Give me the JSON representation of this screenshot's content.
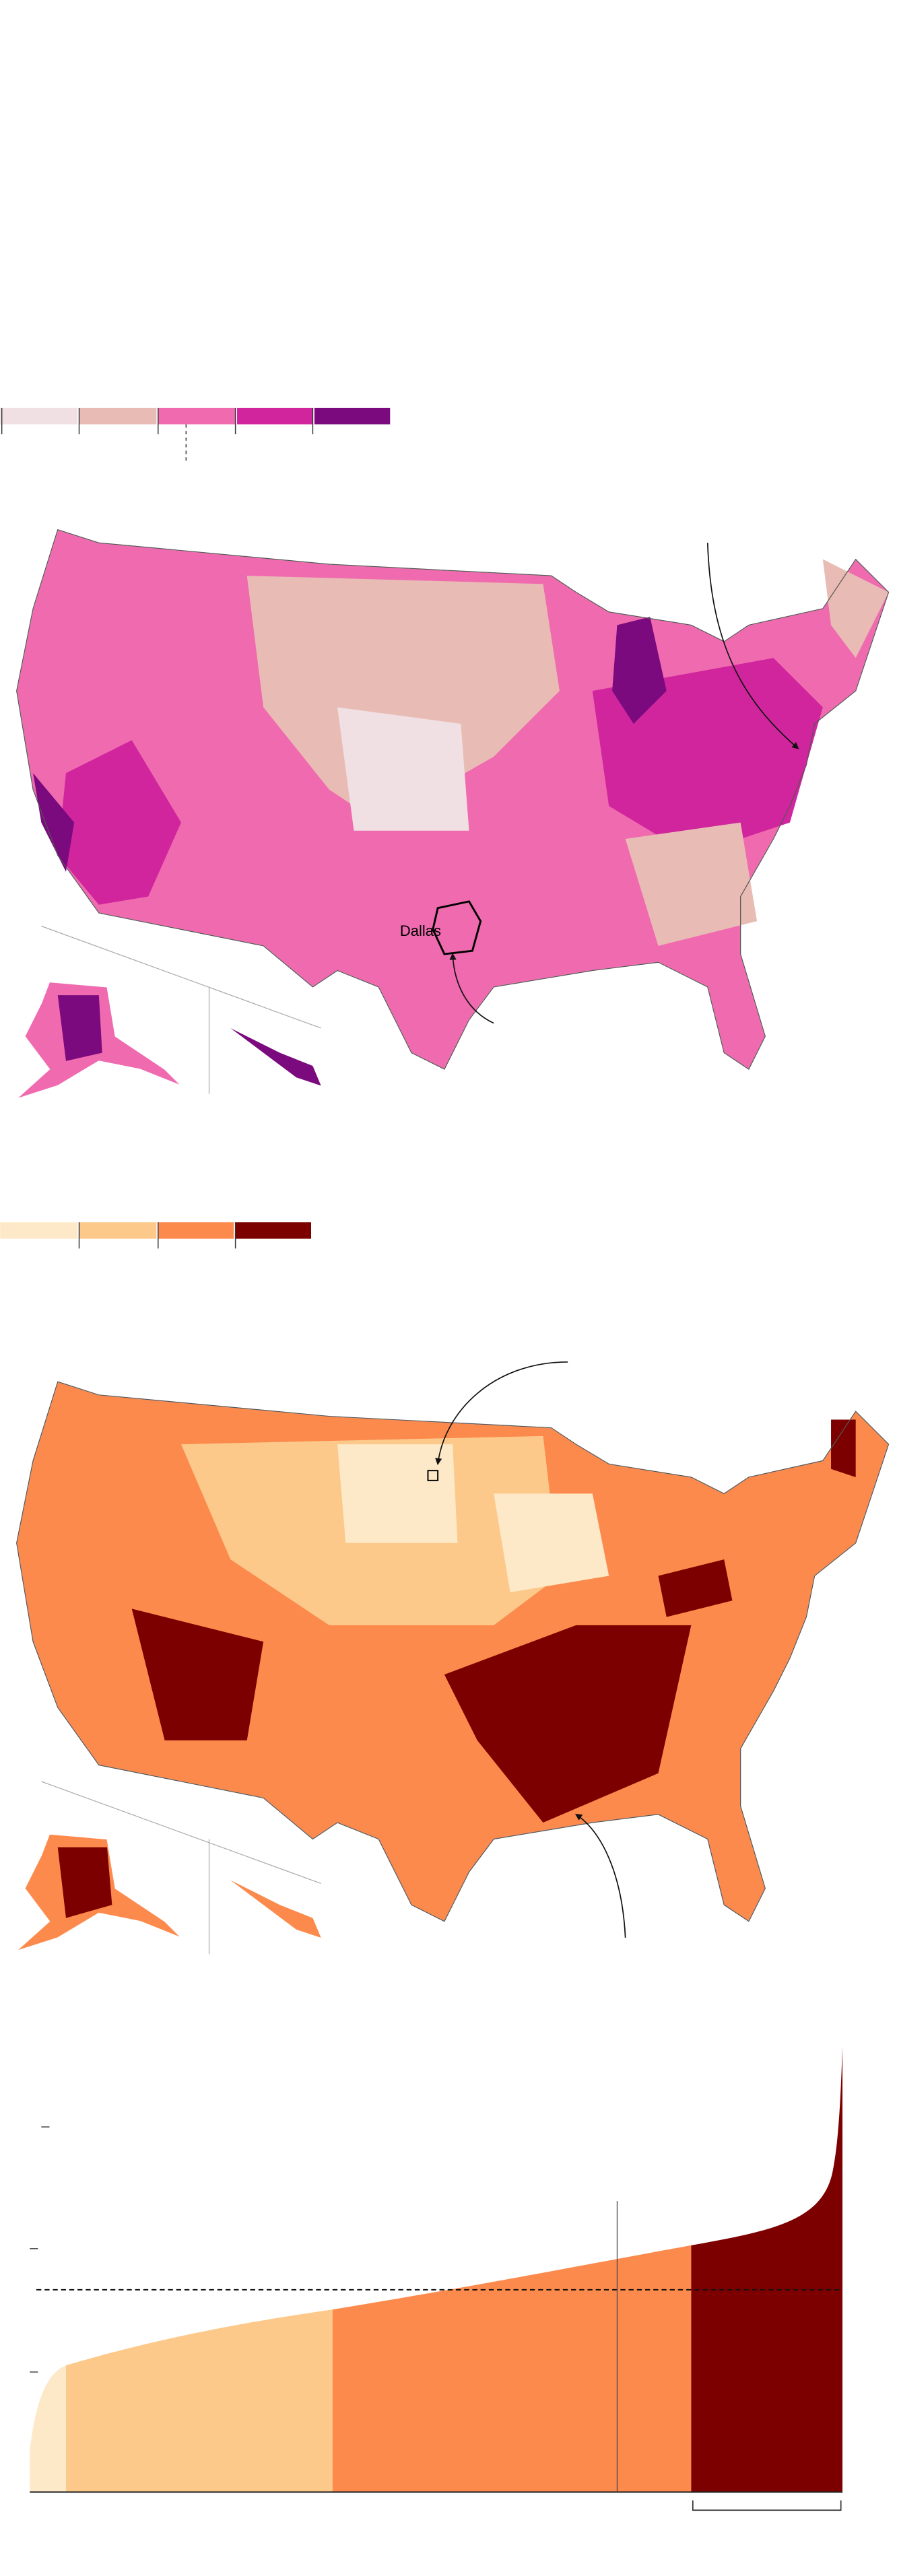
{
  "annotations": {
    "dallas": "Dallas"
  }
}
